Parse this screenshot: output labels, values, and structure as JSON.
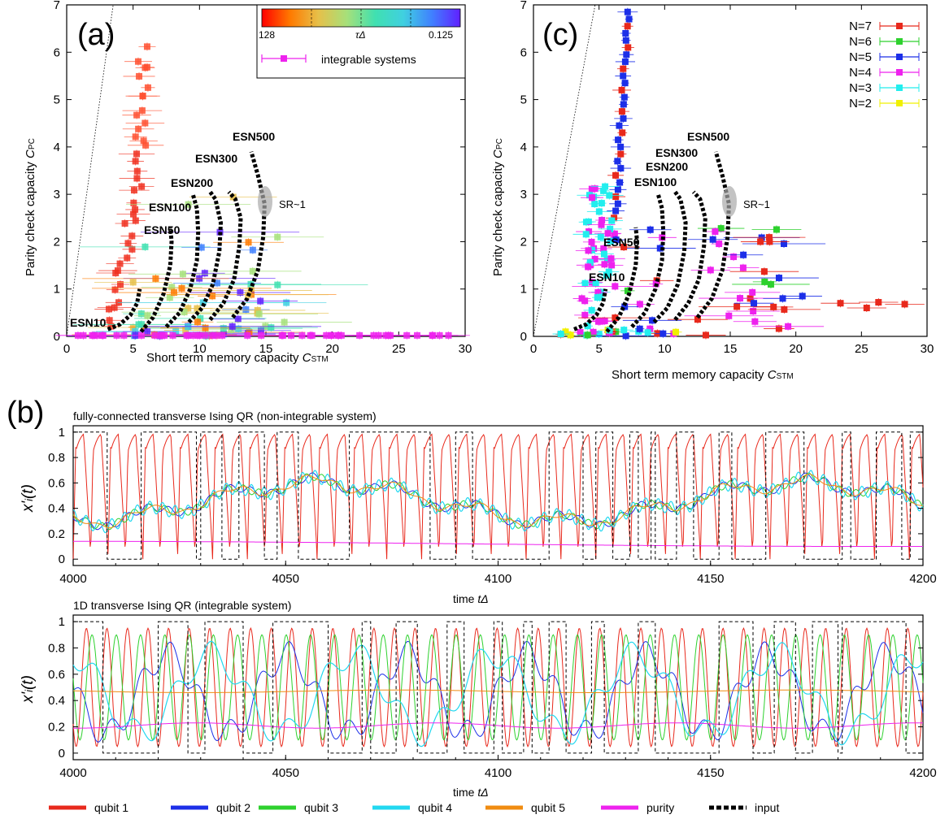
{
  "panels": {
    "a": {
      "tag": "(a)"
    },
    "c": {
      "tag": "(c)"
    },
    "b": {
      "tag": "(b)"
    }
  },
  "colorbar": {
    "left": "128",
    "mid": "τΔ",
    "right": "0.125",
    "integrable_label": "integrable systems",
    "stops": [
      "#ff0000",
      "#ff7a00",
      "#e6c04a",
      "#a6e07a",
      "#40e0b0",
      "#40d0e0",
      "#4080ff",
      "#6020ff"
    ]
  },
  "chart_data": [
    {
      "id": "a",
      "type": "scatter",
      "xlabel": "Short term memory capacity C_STM",
      "ylabel": "Parity check capacity C_PC",
      "xlim": [
        0,
        30
      ],
      "ylim": [
        0,
        7
      ],
      "xticks": [
        "0",
        "5",
        "10",
        "15",
        "20",
        "25",
        "30"
      ],
      "yticks": [
        "0",
        "1",
        "2",
        "3",
        "4",
        "5",
        "6",
        "7"
      ],
      "annotations": [
        "ESN10",
        "ESN50",
        "ESN100",
        "ESN200",
        "ESN300",
        "ESN500",
        "SR~1"
      ],
      "esn_curves": [
        {
          "name": "ESN10",
          "points": [
            [
              3.1,
              0.15
            ],
            [
              4.0,
              0.25
            ],
            [
              4.8,
              0.45
            ],
            [
              5.3,
              0.7
            ],
            [
              5.5,
              1.0
            ]
          ]
        },
        {
          "name": "ESN50",
          "points": [
            [
              5.6,
              0.1
            ],
            [
              6.5,
              0.4
            ],
            [
              7.3,
              0.9
            ],
            [
              7.8,
              1.5
            ],
            [
              7.9,
              2.0
            ],
            [
              7.8,
              2.3
            ]
          ]
        },
        {
          "name": "ESN100",
          "points": [
            [
              7.5,
              0.2
            ],
            [
              8.5,
              0.5
            ],
            [
              9.3,
              1.0
            ],
            [
              9.8,
              1.6
            ],
            [
              9.9,
              2.2
            ],
            [
              9.8,
              2.7
            ],
            [
              9.5,
              3.0
            ]
          ]
        },
        {
          "name": "ESN200",
          "points": [
            [
              9.2,
              0.3
            ],
            [
              10.2,
              0.6
            ],
            [
              11.0,
              1.1
            ],
            [
              11.5,
              1.8
            ],
            [
              11.6,
              2.4
            ],
            [
              11.2,
              2.9
            ],
            [
              10.8,
              3.05
            ]
          ]
        },
        {
          "name": "ESN300",
          "points": [
            [
              10.8,
              0.35
            ],
            [
              11.8,
              0.7
            ],
            [
              12.6,
              1.2
            ],
            [
              13.0,
              1.9
            ],
            [
              13.1,
              2.5
            ],
            [
              12.7,
              2.9
            ],
            [
              12.2,
              3.05
            ]
          ]
        },
        {
          "name": "ESN500",
          "points": [
            [
              12.5,
              0.4
            ],
            [
              13.6,
              0.8
            ],
            [
              14.4,
              1.4
            ],
            [
              14.8,
              2.1
            ],
            [
              14.9,
              2.8
            ],
            [
              14.4,
              3.4
            ],
            [
              13.9,
              3.9
            ]
          ]
        }
      ]
    },
    {
      "id": "c",
      "type": "scatter",
      "xlabel": "Short term memory capacity C_STM",
      "ylabel": "Parity check capacity C_PC",
      "xlim": [
        0,
        30
      ],
      "ylim": [
        0,
        7
      ],
      "xticks": [
        "0",
        "5",
        "10",
        "15",
        "20",
        "25",
        "30"
      ],
      "yticks": [
        "0",
        "1",
        "2",
        "3",
        "4",
        "5",
        "6",
        "7"
      ],
      "annotations": [
        "ESN10",
        "ESN50",
        "ESN100",
        "ESN200",
        "ESN300",
        "ESN500",
        "SR~1"
      ],
      "legend": [
        {
          "name": "N=7",
          "color": "#e8291c"
        },
        {
          "name": "N=6",
          "color": "#2ed12e"
        },
        {
          "name": "N=5",
          "color": "#1c2fe8"
        },
        {
          "name": "N=4",
          "color": "#ee22ee"
        },
        {
          "name": "N=3",
          "color": "#22eeee"
        },
        {
          "name": "N=2",
          "color": "#f0f000"
        }
      ]
    },
    {
      "id": "b1",
      "type": "line",
      "title": "fully-connected transverse Ising QR (non-integrable system)",
      "xlabel": "time tΔ",
      "ylabel": "x'i(t)",
      "xlim": [
        4000,
        4200
      ],
      "ylim": [
        -0.05,
        1.05
      ],
      "xticks": [
        "4000",
        "4050",
        "4100",
        "4150",
        "4200"
      ],
      "yticks": [
        "0",
        "0.2",
        "0.4",
        "0.6",
        "0.8",
        "1"
      ]
    },
    {
      "id": "b2",
      "type": "line",
      "title": "1D transverse Ising QR (integrable system)",
      "xlabel": "time tΔ",
      "ylabel": "x'i(t)",
      "xlim": [
        4000,
        4200
      ],
      "ylim": [
        -0.05,
        1.05
      ],
      "xticks": [
        "4000",
        "4050",
        "4100",
        "4150",
        "4200"
      ],
      "yticks": [
        "0",
        "0.2",
        "0.4",
        "0.6",
        "0.8",
        "1"
      ]
    }
  ],
  "legend_b": [
    {
      "name": "qubit 1",
      "color": "#e8291c",
      "dash": false
    },
    {
      "name": "qubit 2",
      "color": "#1c2fe8",
      "dash": false
    },
    {
      "name": "qubit 3",
      "color": "#2ed12e",
      "dash": false
    },
    {
      "name": "qubit 4",
      "color": "#22d8f0",
      "dash": false
    },
    {
      "name": "qubit 5",
      "color": "#f08c10",
      "dash": false
    },
    {
      "name": "purity",
      "color": "#ee22ee",
      "dash": false
    },
    {
      "name": "input",
      "color": "#000000",
      "dash": true
    }
  ]
}
